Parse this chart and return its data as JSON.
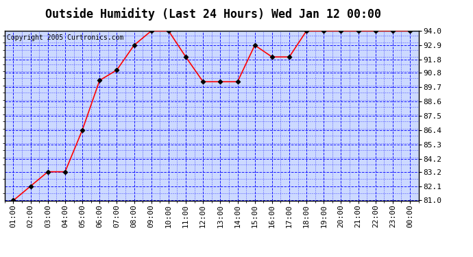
{
  "title": "Outside Humidity (Last 24 Hours) Wed Jan 12 00:00",
  "copyright": "Copyright 2005 Curtronics.com",
  "x_labels": [
    "01:00",
    "02:00",
    "03:00",
    "04:00",
    "05:00",
    "06:00",
    "07:00",
    "08:00",
    "09:00",
    "10:00",
    "11:00",
    "12:00",
    "13:00",
    "14:00",
    "15:00",
    "16:00",
    "17:00",
    "18:00",
    "19:00",
    "20:00",
    "21:00",
    "22:00",
    "23:00",
    "00:00"
  ],
  "x_values": [
    1,
    2,
    3,
    4,
    5,
    6,
    7,
    8,
    9,
    10,
    11,
    12,
    13,
    14,
    15,
    16,
    17,
    18,
    19,
    20,
    21,
    22,
    23,
    24
  ],
  "y_values": [
    81.0,
    82.1,
    83.2,
    83.2,
    86.4,
    90.2,
    91.0,
    92.9,
    94.0,
    94.0,
    92.0,
    90.1,
    90.1,
    90.1,
    92.9,
    92.0,
    92.0,
    94.0,
    94.0,
    94.0,
    94.0,
    94.0,
    94.0,
    94.0
  ],
  "ylim": [
    81.0,
    94.0
  ],
  "yticks": [
    81.0,
    82.1,
    83.2,
    84.2,
    85.3,
    86.4,
    87.5,
    88.6,
    89.7,
    90.8,
    91.8,
    92.9,
    94.0
  ],
  "line_color": "red",
  "marker_color": "black",
  "bg_color": "#ccd9ff",
  "fig_bg_color": "#ffffff",
  "border_color": "black",
  "grid_color": "blue",
  "title_fontsize": 12,
  "copyright_fontsize": 7,
  "tick_fontsize": 8,
  "tick_font": "monospace"
}
